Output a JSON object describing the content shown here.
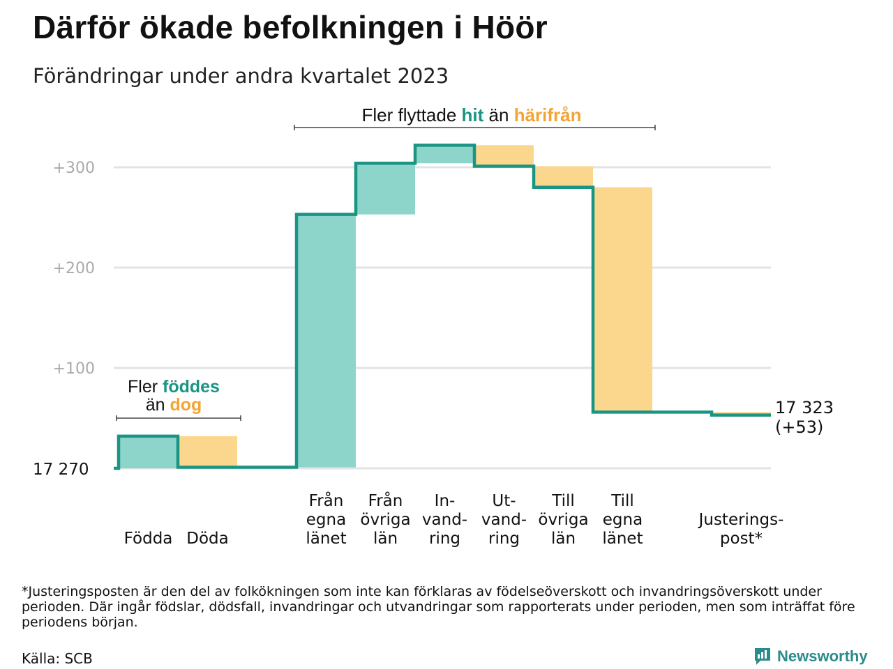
{
  "title": "Därför ökade befolkningen i Höör",
  "subtitle": "Förändringar under andra kvartalet 2023",
  "colors": {
    "inflow": "#8dd5cb",
    "outflow": "#fbd68d",
    "line": "#1a9483",
    "grid": "#e3e3e3",
    "tick": "#aaaaaa",
    "hit": "#1a9483",
    "harifran": "#f2a533"
  },
  "chart_data": {
    "type": "waterfall",
    "start_value": 17270,
    "start_label": "17  270",
    "end_label_value": "17 323",
    "end_label_change": "(+53)",
    "y_ticks": [
      "+100",
      "+200",
      "+300"
    ],
    "y_tick_values": [
      100,
      200,
      300
    ],
    "ylim": [
      0,
      300
    ],
    "steps": [
      {
        "label": [
          "Födda"
        ],
        "value": 32,
        "kind": "inflow"
      },
      {
        "label": [
          "Döda"
        ],
        "value": -31,
        "kind": "outflow"
      },
      {
        "label": [],
        "value": 0,
        "kind": "gap"
      },
      {
        "label": [
          "Från",
          "egna",
          "länet"
        ],
        "value": 252,
        "kind": "inflow"
      },
      {
        "label": [
          "Från",
          "övriga",
          "län"
        ],
        "value": 51,
        "kind": "inflow"
      },
      {
        "label": [
          "In-",
          "vand-",
          "ring"
        ],
        "value": 18,
        "kind": "inflow"
      },
      {
        "label": [
          "Ut-",
          "vand-",
          "ring"
        ],
        "value": -21,
        "kind": "outflow"
      },
      {
        "label": [
          "Till",
          "övriga",
          "län"
        ],
        "value": -21,
        "kind": "outflow"
      },
      {
        "label": [
          "Till",
          "egna",
          "länet"
        ],
        "value": -224,
        "kind": "outflow"
      },
      {
        "label": [],
        "value": 0,
        "kind": "gap"
      },
      {
        "label": [
          "Justerings-",
          "post*"
        ],
        "value": -3,
        "kind": "outflow"
      }
    ],
    "annotations": [
      {
        "parts": [
          "Fler ",
          "föddes"
        ],
        "line2": [
          "än ",
          "dog"
        ]
      },
      {
        "parts": [
          "Fler flyttade ",
          "hit",
          " än ",
          "härifrån"
        ]
      }
    ]
  },
  "footnote": "*Justeringsposten är den del av folkökningen som inte kan förklaras av födelseöverskott och invandringsöverskott under perioden. Där ingår födslar, dödsfall, invandringar och utvandringar som rapporterats under perioden, men som inträffat före periodens början.",
  "source": "Källa: SCB",
  "brand": "Newsworthy"
}
